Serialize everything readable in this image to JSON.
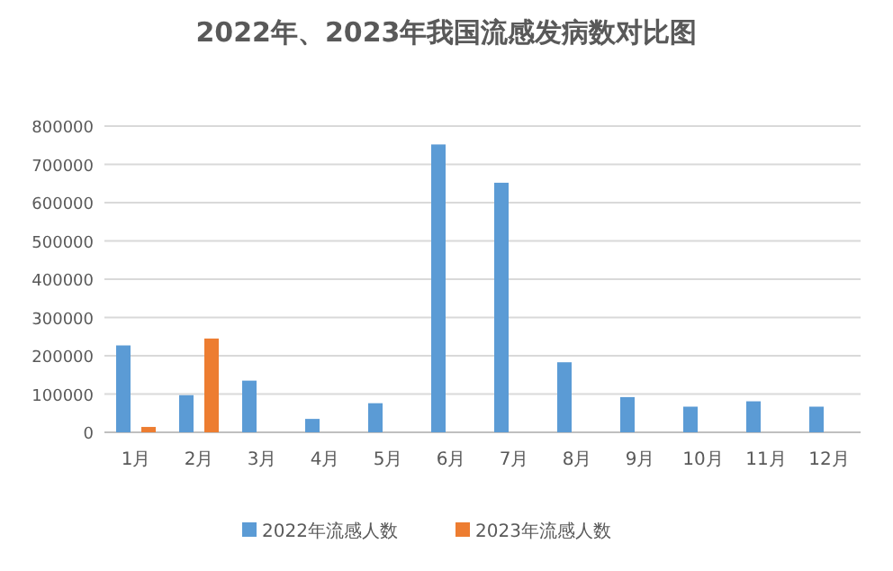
{
  "chart_data": {
    "type": "bar",
    "title": "2022年、2023年我国流感发病数对比图",
    "categories": [
      "1月",
      "2月",
      "3月",
      "4月",
      "5月",
      "6月",
      "7月",
      "8月",
      "9月",
      "10月",
      "11月",
      "12月"
    ],
    "series": [
      {
        "name": "2022年流感人数",
        "color": "#5b9bd5",
        "values": [
          227000,
          97000,
          135000,
          35000,
          76000,
          752000,
          652000,
          183000,
          92000,
          67000,
          81000,
          67000
        ]
      },
      {
        "name": "2023年流感人数",
        "color": "#ed7d31",
        "values": [
          14000,
          245000,
          null,
          null,
          null,
          null,
          null,
          null,
          null,
          null,
          null,
          null
        ]
      }
    ],
    "ylim": [
      0,
      800000
    ],
    "yticks": [
      0,
      100000,
      200000,
      300000,
      400000,
      500000,
      600000,
      700000,
      800000
    ],
    "grid": "y",
    "legend": "bottom"
  }
}
